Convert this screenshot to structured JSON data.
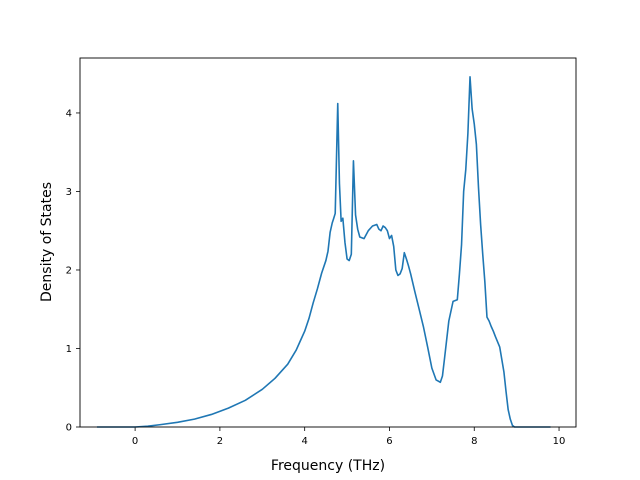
{
  "chart_data": {
    "type": "line",
    "title": "",
    "xlabel": "Frequency (THz)",
    "ylabel": "Density of States",
    "xlim": [
      -1.3,
      10.4
    ],
    "ylim": [
      0,
      4.7
    ],
    "x_ticks": [
      0,
      2,
      4,
      6,
      8,
      10
    ],
    "y_ticks": [
      0,
      1,
      2,
      3,
      4
    ],
    "x_tick_labels": [
      "0",
      "2",
      "4",
      "6",
      "8",
      "10"
    ],
    "y_tick_labels": [
      "0",
      "1",
      "2",
      "3",
      "4"
    ],
    "grid": false,
    "legend": "none",
    "color": "#1f77b4",
    "series": [
      {
        "x": [
          -0.9,
          -0.5,
          0.0,
          0.3,
          0.6,
          1.0,
          1.4,
          1.8,
          2.2,
          2.6,
          3.0,
          3.3,
          3.6,
          3.8,
          3.9,
          4.0,
          4.1,
          4.2,
          4.3,
          4.4,
          4.5,
          4.55,
          4.6,
          4.65,
          4.68,
          4.72,
          4.78,
          4.82,
          4.86,
          4.9,
          4.95,
          5.0,
          5.05,
          5.1,
          5.15,
          5.2,
          5.25,
          5.3,
          5.4,
          5.5,
          5.6,
          5.7,
          5.75,
          5.8,
          5.85,
          5.9,
          5.95,
          6.0,
          6.05,
          6.1,
          6.15,
          6.2,
          6.25,
          6.3,
          6.35,
          6.4,
          6.45,
          6.5,
          6.6,
          6.7,
          6.8,
          6.9,
          7.0,
          7.1,
          7.2,
          7.25,
          7.3,
          7.4,
          7.5,
          7.6,
          7.65,
          7.7,
          7.75,
          7.8,
          7.85,
          7.9,
          7.95,
          8.0,
          8.05,
          8.1,
          8.15,
          8.2,
          8.25,
          8.3,
          8.35,
          8.4,
          8.45,
          8.5,
          8.6,
          8.7,
          8.75,
          8.8,
          8.85,
          8.9,
          8.95,
          9.0,
          9.3,
          9.8
        ],
        "y": [
          0.0,
          0.0,
          0.0,
          0.01,
          0.03,
          0.06,
          0.1,
          0.16,
          0.24,
          0.34,
          0.48,
          0.62,
          0.8,
          0.98,
          1.1,
          1.22,
          1.38,
          1.58,
          1.76,
          1.96,
          2.12,
          2.24,
          2.48,
          2.6,
          2.65,
          2.72,
          4.12,
          3.1,
          2.62,
          2.66,
          2.35,
          2.14,
          2.12,
          2.2,
          3.39,
          2.7,
          2.52,
          2.42,
          2.4,
          2.5,
          2.56,
          2.58,
          2.52,
          2.5,
          2.56,
          2.54,
          2.5,
          2.4,
          2.44,
          2.3,
          2.0,
          1.93,
          1.95,
          2.02,
          2.22,
          2.14,
          2.05,
          1.95,
          1.72,
          1.5,
          1.28,
          1.02,
          0.75,
          0.6,
          0.57,
          0.65,
          0.88,
          1.35,
          1.6,
          1.62,
          1.95,
          2.32,
          3.0,
          3.28,
          3.74,
          4.46,
          4.05,
          3.86,
          3.6,
          3.05,
          2.58,
          2.2,
          1.85,
          1.4,
          1.35,
          1.28,
          1.22,
          1.15,
          1.02,
          0.7,
          0.45,
          0.22,
          0.1,
          0.02,
          0.0,
          0.0,
          0.0,
          0.0
        ]
      }
    ]
  }
}
